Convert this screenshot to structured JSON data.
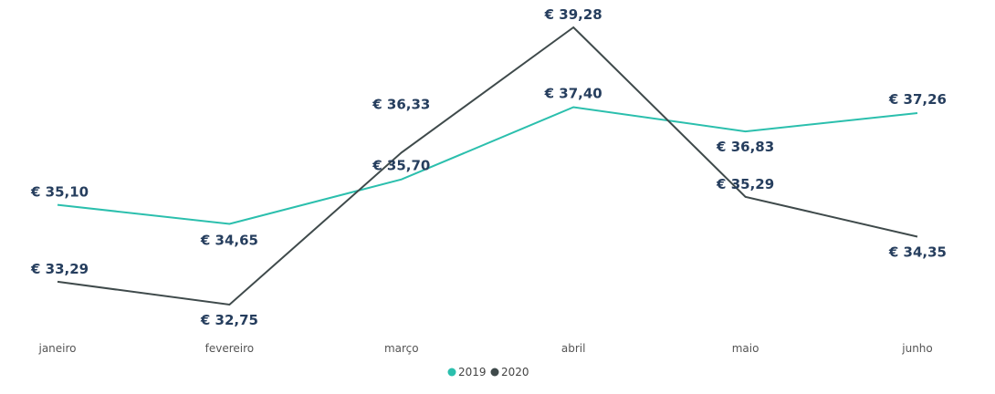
{
  "chart_data": {
    "type": "line",
    "title": "",
    "xlabel": "",
    "ylabel": "",
    "categories": [
      "janeiro",
      "fevereiro",
      "março",
      "abril",
      "maio",
      "junho"
    ],
    "series": [
      {
        "name": "2019",
        "values": [
          35.1,
          34.65,
          35.7,
          37.4,
          36.83,
          37.26
        ],
        "labels": [
          "€ 35,10",
          "€ 34,65",
          "€ 35,70",
          "€ 37,40",
          "€ 36,83",
          "€ 37,26"
        ],
        "color": "#2bbfad"
      },
      {
        "name": "2020",
        "values": [
          33.29,
          32.75,
          36.33,
          39.28,
          35.29,
          34.35
        ],
        "labels": [
          "€ 33,29",
          "€ 32,75",
          "€ 36,33",
          "€ 39,28",
          "€ 35,29",
          "€ 34,35"
        ],
        "color": "#3f4a4b"
      }
    ],
    "ylim": [
      32.75,
      39.28
    ],
    "grid": false,
    "legend_position": "bottom-center",
    "label_color": "#263e5e"
  }
}
